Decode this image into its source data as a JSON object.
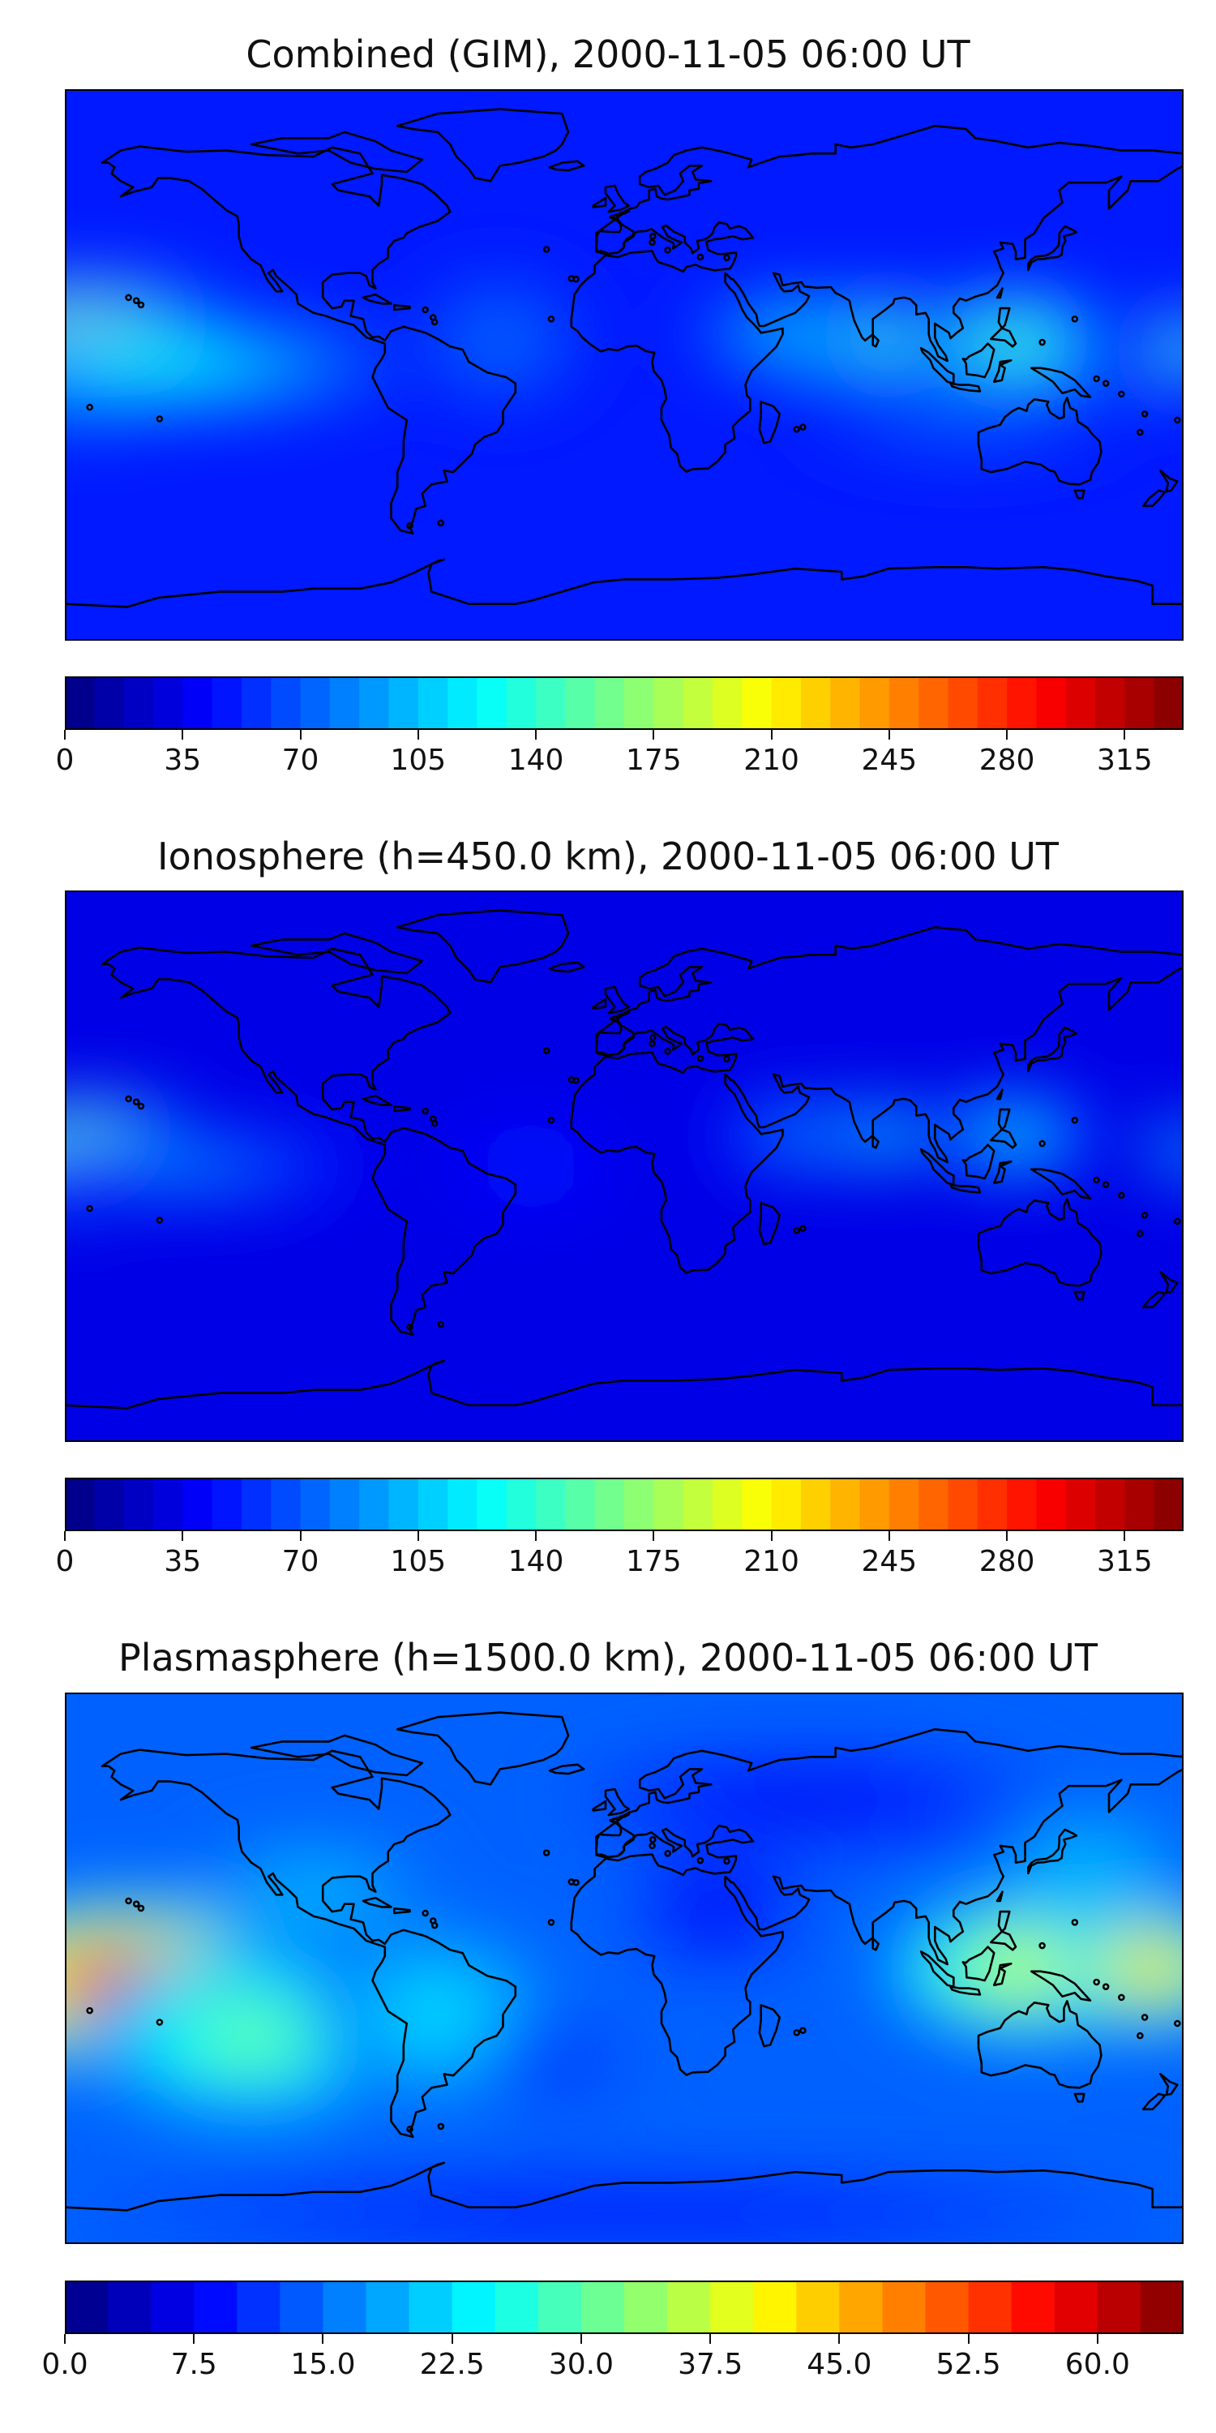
{
  "panels": [
    {
      "title": "Combined (GIM), 2000-11-05 06:00 UT",
      "colormap": "jet",
      "colorbar": {
        "min": 0,
        "max": 332.5,
        "levels": 38,
        "ticks": [
          "0",
          "35",
          "70",
          "105",
          "140",
          "175",
          "210",
          "245",
          "280",
          "315"
        ]
      },
      "background_level": 0.15,
      "blobs": [
        {
          "lon": -172,
          "lat": 4,
          "rlon": 52,
          "rlat": 23,
          "level": 0.82
        },
        {
          "lon": -150,
          "lat": 0,
          "rlon": 80,
          "rlat": 16,
          "level": 0.26
        },
        {
          "lon": -40,
          "lat": 8,
          "rlon": 30,
          "rlat": 22,
          "level": 0.09
        },
        {
          "lon": 58,
          "lat": 10,
          "rlon": 38,
          "rlat": 13,
          "level": 0.22
        },
        {
          "lon": 85,
          "lat": 10,
          "rlon": 18,
          "rlat": 12,
          "level": 0.36
        },
        {
          "lon": 125,
          "lat": 8,
          "rlon": 34,
          "rlat": 16,
          "level": 0.34
        },
        {
          "lon": 180,
          "lat": 5,
          "rlon": 14,
          "rlat": 12,
          "level": 0.38
        },
        {
          "lon": 110,
          "lat": -15,
          "rlon": 55,
          "rlat": 15,
          "level": 0.08
        }
      ]
    },
    {
      "title": "Ionosphere  (h=450.0 km), 2000-11-05 06:00 UT",
      "colormap": "jet",
      "colorbar": {
        "min": 0,
        "max": 332.5,
        "levels": 38,
        "ticks": [
          "0",
          "35",
          "70",
          "105",
          "140",
          "175",
          "210",
          "245",
          "280",
          "315"
        ]
      },
      "background_level": 0.1,
      "blobs": [
        {
          "lon": -172,
          "lat": 4,
          "rlon": 40,
          "rlat": 18,
          "level": 0.66
        },
        {
          "lon": -140,
          "lat": 0,
          "rlon": 60,
          "rlat": 12,
          "level": 0.18
        },
        {
          "lon": -30,
          "lat": 0,
          "rlon": 30,
          "rlat": 16,
          "level": 0.06
        },
        {
          "lon": 60,
          "lat": 10,
          "rlon": 34,
          "rlat": 12,
          "level": 0.2
        },
        {
          "lon": 85,
          "lat": 10,
          "rlon": 16,
          "rlat": 10,
          "level": 0.33
        },
        {
          "lon": 125,
          "lat": 10,
          "rlon": 30,
          "rlat": 14,
          "level": 0.28
        },
        {
          "lon": 180,
          "lat": 5,
          "rlon": 12,
          "rlat": 10,
          "level": 0.33
        }
      ]
    },
    {
      "title": "Plasmasphere (h=1500.0 km), 2000-11-05 06:00 UT",
      "colormap": "jet",
      "colorbar": {
        "min": 0,
        "max": 65,
        "levels": 26,
        "ticks": [
          "0.0",
          "7.5",
          "15.0",
          "22.5",
          "30.0",
          "37.5",
          "45.0",
          "52.5",
          "60.0"
        ]
      },
      "background_level": 0.22,
      "blobs": [
        {
          "lon": -162,
          "lat": -5,
          "rlon": 55,
          "rlat": 28,
          "level": 0.78
        },
        {
          "lon": -120,
          "lat": -22,
          "rlon": 55,
          "rlat": 28,
          "level": 0.28
        },
        {
          "lon": -60,
          "lat": -15,
          "rlon": 40,
          "rlat": 30,
          "level": 0.14
        },
        {
          "lon": -100,
          "lat": 25,
          "rlon": 40,
          "rlat": 18,
          "level": 0.1
        },
        {
          "lon": 130,
          "lat": 0,
          "rlon": 48,
          "rlat": 24,
          "level": 0.4
        },
        {
          "lon": 170,
          "lat": 0,
          "rlon": 30,
          "rlat": 20,
          "level": 0.55
        },
        {
          "lon": 150,
          "lat": 35,
          "rlon": 35,
          "rlat": 15,
          "level": 0.12
        },
        {
          "lon": 60,
          "lat": 55,
          "rlon": 80,
          "rlat": 18,
          "level": -0.12
        },
        {
          "lon": 30,
          "lat": 20,
          "rlon": 30,
          "rlat": 22,
          "level": -0.12
        },
        {
          "lon": -20,
          "lat": -30,
          "rlon": 25,
          "rlat": 15,
          "level": -0.05
        },
        {
          "lon": 0,
          "lat": -80,
          "rlon": 180,
          "rlat": 14,
          "level": -0.1
        }
      ]
    }
  ],
  "coastline_color": "#000000"
}
